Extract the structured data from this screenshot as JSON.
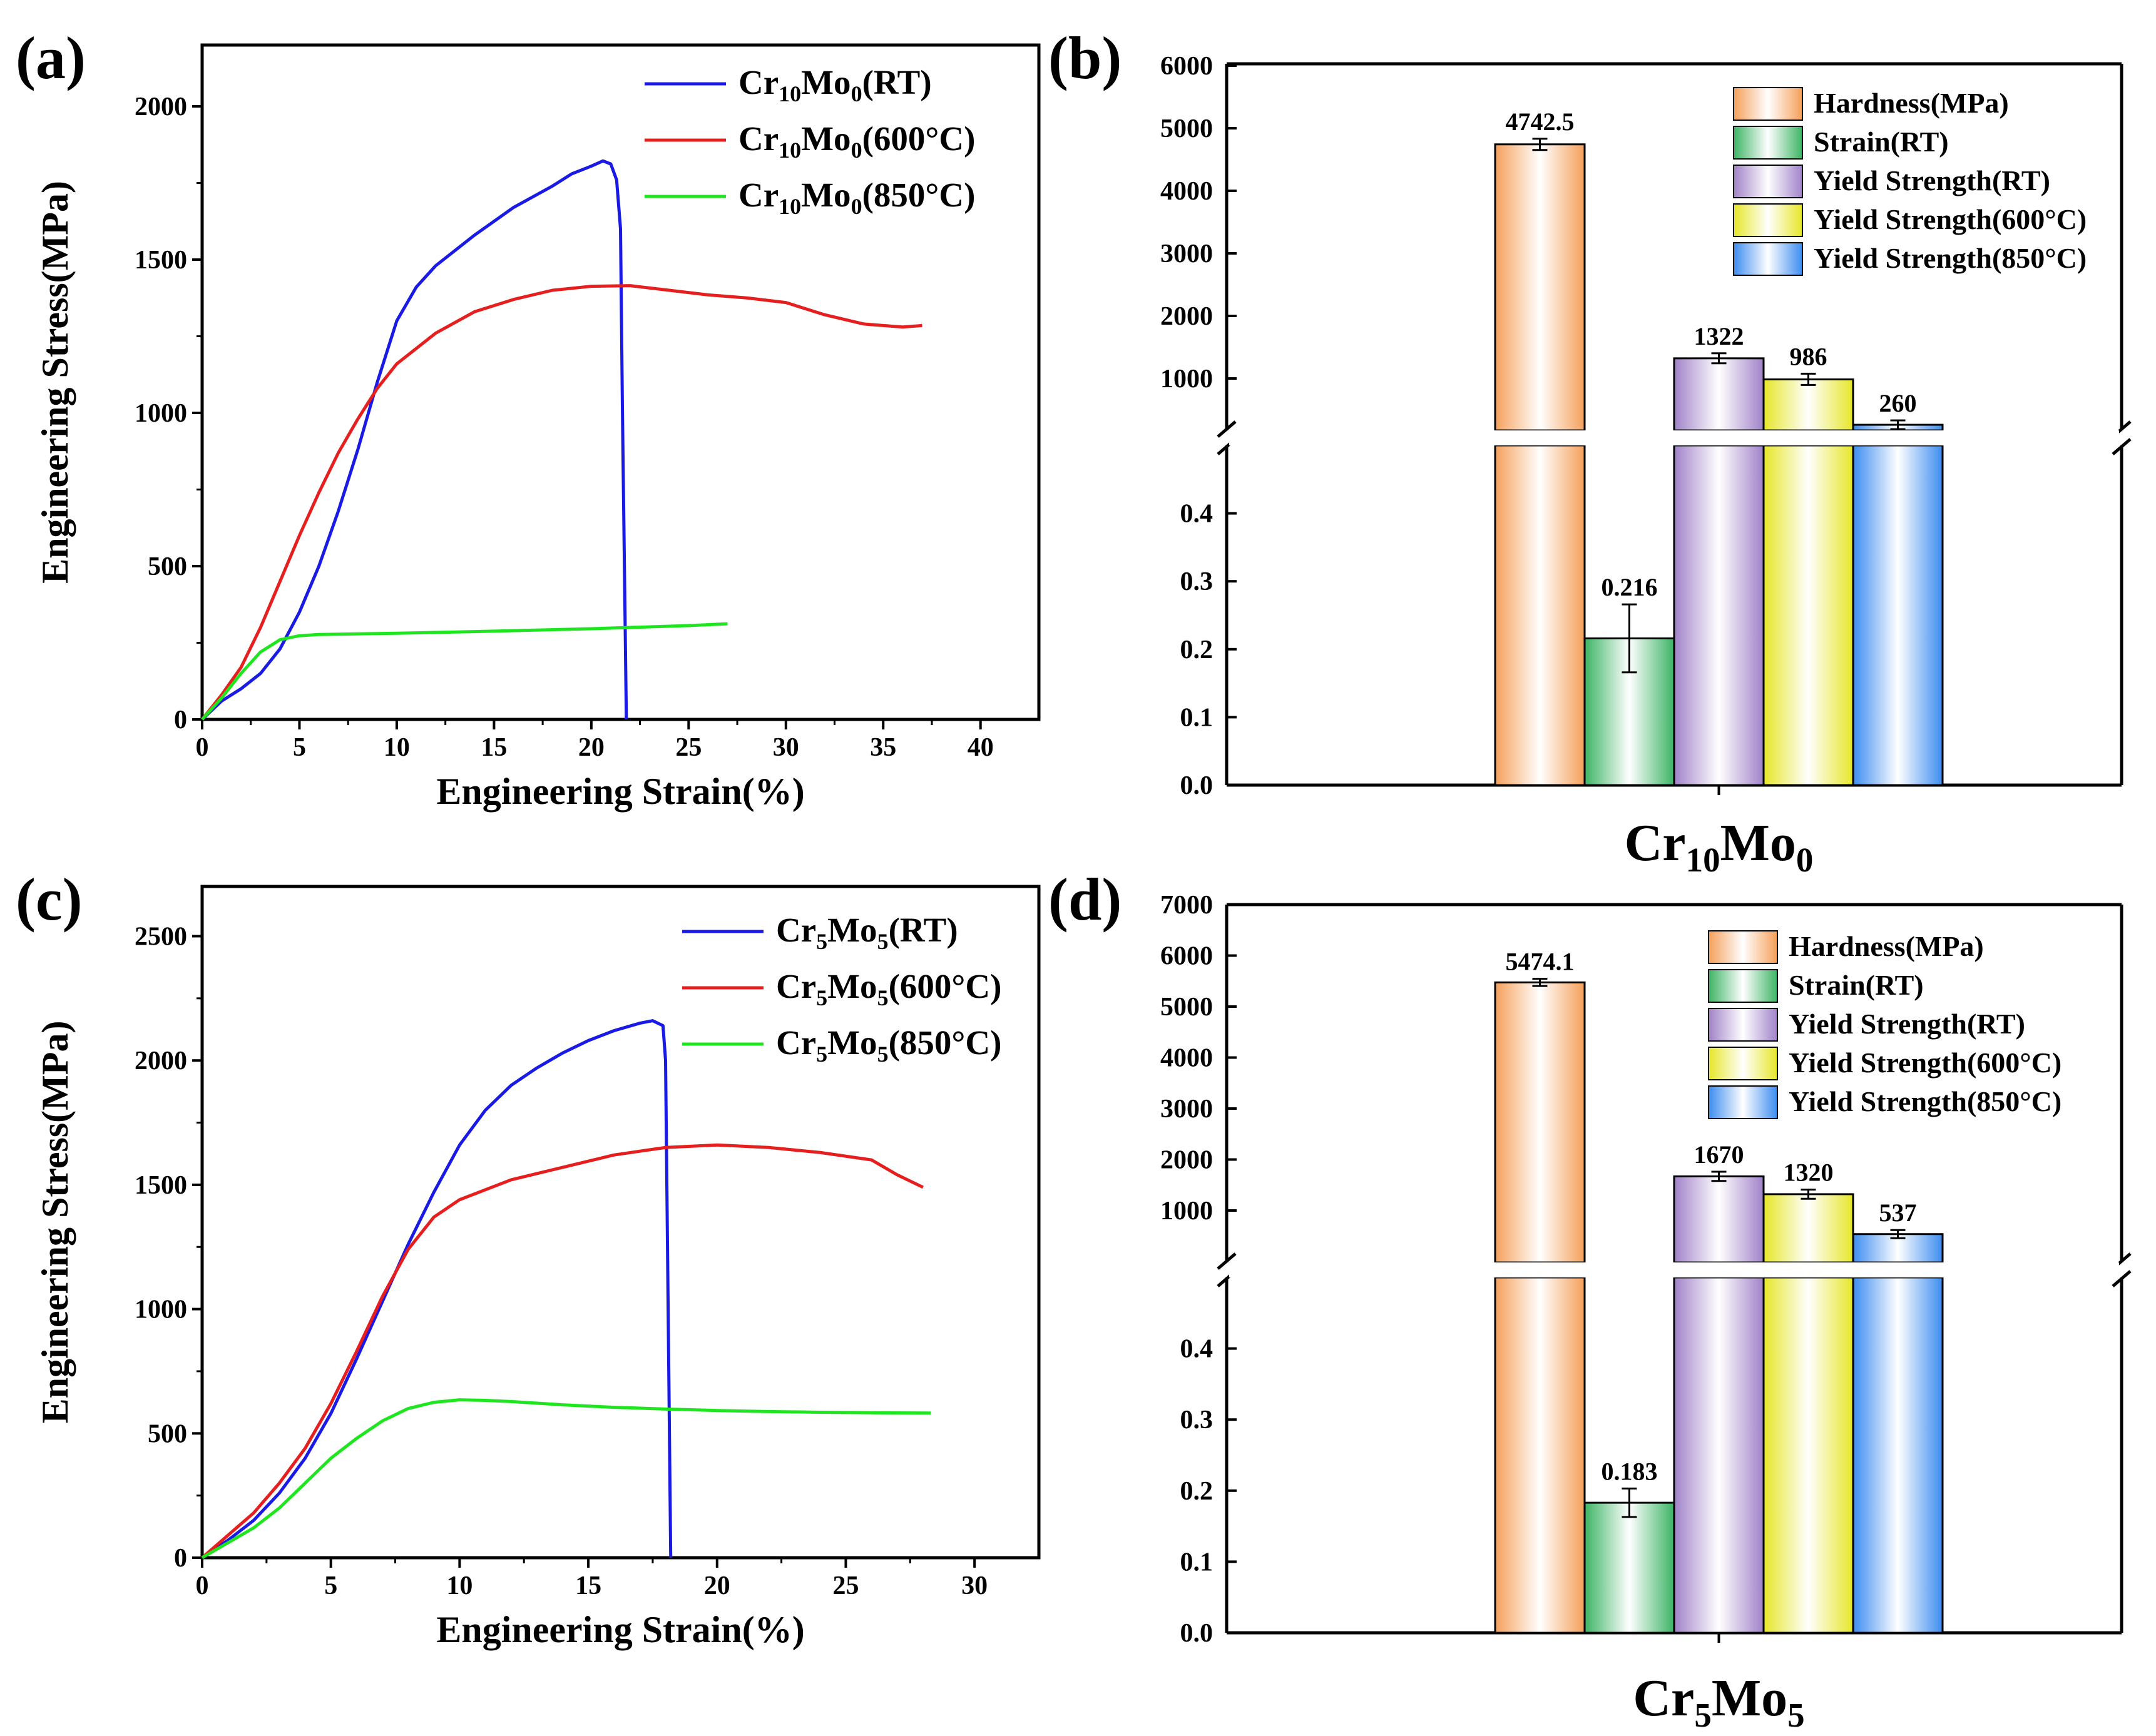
{
  "chart_data": [
    {
      "panel": "(a)",
      "type": "line",
      "xlabel": "Engineering Strain(%)",
      "ylabel": "Engineering Stress(MPa)",
      "xlim": [
        0,
        43
      ],
      "ylim": [
        0,
        2200
      ],
      "xticks": [
        0,
        5,
        10,
        15,
        20,
        25,
        30,
        35,
        40
      ],
      "yticks": [
        0,
        500,
        1000,
        1500,
        2000
      ],
      "legend_position": "top-right",
      "series": [
        {
          "name": "Cr10Mo0(RT)",
          "legend": {
            "base": "Cr",
            "s1": "10",
            "mid": "Mo",
            "s2": "0",
            "suffix": "(RT)"
          },
          "color": "#1a1ae6",
          "x": [
            0,
            1,
            2,
            3,
            4,
            5,
            6,
            7,
            8,
            9,
            10,
            11,
            12,
            14,
            16,
            18,
            19,
            20,
            20.6,
            21.0,
            21.3,
            21.5,
            21.6,
            21.8
          ],
          "y": [
            0,
            60,
            100,
            150,
            230,
            350,
            500,
            680,
            880,
            1100,
            1300,
            1410,
            1480,
            1580,
            1670,
            1740,
            1780,
            1805,
            1822,
            1812,
            1760,
            1600,
            1000,
            0
          ]
        },
        {
          "name": "Cr10Mo0(600°C)",
          "legend": {
            "base": "Cr",
            "s1": "10",
            "mid": "Mo",
            "s2": "0",
            "suffix": "(600°C)"
          },
          "color": "#e61e1e",
          "x": [
            0,
            1,
            2,
            3,
            4,
            5,
            6,
            7,
            8,
            9,
            10,
            12,
            14,
            16,
            18,
            20,
            22,
            24,
            26,
            28,
            30,
            32,
            34,
            36,
            37
          ],
          "y": [
            0,
            80,
            170,
            300,
            450,
            600,
            740,
            870,
            980,
            1080,
            1160,
            1260,
            1330,
            1370,
            1400,
            1413,
            1415,
            1400,
            1385,
            1375,
            1360,
            1320,
            1290,
            1280,
            1285
          ]
        },
        {
          "name": "Cr10Mo0(850°C)",
          "legend": {
            "base": "Cr",
            "s1": "10",
            "mid": "Mo",
            "s2": "0",
            "suffix": "(850°C)"
          },
          "color": "#1ee61e",
          "x": [
            0,
            1,
            2,
            3,
            4,
            5,
            6,
            8,
            10,
            15,
            20,
            25,
            27
          ],
          "y": [
            0,
            70,
            150,
            220,
            260,
            273,
            277,
            279,
            281,
            288,
            296,
            306,
            312
          ]
        }
      ]
    },
    {
      "panel": "(b)",
      "type": "bar",
      "category": {
        "base": "Cr",
        "s1": "10",
        "mid": "Mo",
        "s2": "0"
      },
      "broken_axis": {
        "upper_range": [
          0,
          6000
        ],
        "upper_ticks": [
          "1000",
          "2000",
          "3000",
          "4000",
          "5000",
          "6000"
        ],
        "lower_range": [
          0,
          0.5
        ],
        "lower_ticks": [
          "0.0",
          "0.1",
          "0.2",
          "0.3",
          "0.4"
        ]
      },
      "legend_position": "top-right",
      "bars": [
        {
          "name": "Hardness(MPa)",
          "value": 4742.5,
          "error": 90,
          "label": "4742.5",
          "axis": "upper",
          "color": "#f5a05a"
        },
        {
          "name": "Strain(RT)",
          "value": 0.216,
          "error": 0.05,
          "label": "0.216",
          "axis": "lower",
          "color": "#3cb464"
        },
        {
          "name": "Yield Strength(RT)",
          "value": 1322,
          "error": 80,
          "label": "1322",
          "axis": "upper",
          "color": "#a082c8"
        },
        {
          "name": "Yield Strength(600°C)",
          "value": 986,
          "error": 90,
          "label": "986",
          "axis": "upper",
          "color": "#e6e628"
        },
        {
          "name": "Yield Strength(850°C)",
          "value": 260,
          "error": 70,
          "label": "260",
          "axis": "upper",
          "color": "#3c8cf0"
        }
      ]
    },
    {
      "panel": "(c)",
      "type": "line",
      "xlabel": "Engineering Strain(%)",
      "ylabel": "Engineering Stress(MPa)",
      "xlim": [
        0,
        32.5
      ],
      "ylim": [
        0,
        2700
      ],
      "xticks": [
        0,
        5,
        10,
        15,
        20,
        25,
        30
      ],
      "yticks": [
        0,
        500,
        1000,
        1500,
        2000,
        2500
      ],
      "legend_position": "top-right",
      "series": [
        {
          "name": "Cr5Mo5(RT)",
          "legend": {
            "base": "Cr",
            "s1": "5",
            "mid": "Mo",
            "s2": "5",
            "suffix": "(RT)"
          },
          "color": "#1a1ae6",
          "x": [
            0,
            1,
            2,
            3,
            4,
            5,
            6,
            7,
            8,
            9,
            10,
            11,
            12,
            13,
            14,
            15,
            16,
            17,
            17.5,
            17.9,
            18.0,
            18.1,
            18.2
          ],
          "y": [
            0,
            70,
            150,
            260,
            400,
            580,
            800,
            1030,
            1260,
            1470,
            1660,
            1800,
            1900,
            1970,
            2030,
            2080,
            2120,
            2150,
            2160,
            2140,
            2000,
            1000,
            0
          ]
        },
        {
          "name": "Cr5Mo5(600°C)",
          "legend": {
            "base": "Cr",
            "s1": "5",
            "mid": "Mo",
            "s2": "5",
            "suffix": "(600°C)"
          },
          "color": "#e61e1e",
          "x": [
            0,
            1,
            2,
            3,
            4,
            5,
            6,
            7,
            8,
            9,
            10,
            12,
            14,
            16,
            18,
            20,
            22,
            24,
            26,
            26.5,
            27,
            28
          ],
          "y": [
            0,
            90,
            180,
            300,
            440,
            620,
            830,
            1050,
            1240,
            1370,
            1440,
            1520,
            1570,
            1620,
            1650,
            1660,
            1650,
            1630,
            1600,
            1570,
            1540,
            1490
          ]
        },
        {
          "name": "Cr5Mo5(850°C)",
          "legend": {
            "base": "Cr",
            "s1": "5",
            "mid": "Mo",
            "s2": "5",
            "suffix": "(850°C)"
          },
          "color": "#1ee61e",
          "x": [
            0,
            1,
            2,
            3,
            4,
            5,
            6,
            7,
            8,
            9,
            10,
            11,
            12,
            14,
            16,
            18,
            20,
            22,
            24,
            26,
            28.3
          ],
          "y": [
            0,
            60,
            120,
            200,
            300,
            400,
            480,
            550,
            600,
            625,
            635,
            633,
            628,
            615,
            605,
            598,
            592,
            588,
            585,
            583,
            582
          ]
        }
      ]
    },
    {
      "panel": "(d)",
      "type": "bar",
      "category": {
        "base": "Cr",
        "s1": "5",
        "mid": "Mo",
        "s2": "5"
      },
      "broken_axis": {
        "upper_range": [
          0,
          7000
        ],
        "upper_ticks": [
          "1000",
          "2000",
          "3000",
          "4000",
          "5000",
          "6000",
          "7000"
        ],
        "lower_range": [
          0,
          0.5
        ],
        "lower_ticks": [
          "0.0",
          "0.1",
          "0.2",
          "0.3",
          "0.4"
        ]
      },
      "legend_position": "top-right",
      "bars": [
        {
          "name": "Hardness(MPa)",
          "value": 5474.1,
          "error": 70,
          "label": "5474.1",
          "axis": "upper",
          "color": "#f5a05a"
        },
        {
          "name": "Strain(RT)",
          "value": 0.183,
          "error": 0.02,
          "label": "0.183",
          "axis": "lower",
          "color": "#3cb464"
        },
        {
          "name": "Yield Strength(RT)",
          "value": 1670,
          "error": 90,
          "label": "1670",
          "axis": "upper",
          "color": "#a082c8"
        },
        {
          "name": "Yield Strength(600°C)",
          "value": 1320,
          "error": 90,
          "label": "1320",
          "axis": "upper",
          "color": "#e6e628"
        },
        {
          "name": "Yield Strength(850°C)",
          "value": 537,
          "error": 80,
          "label": "537",
          "axis": "upper",
          "color": "#3c8cf0"
        }
      ]
    }
  ]
}
